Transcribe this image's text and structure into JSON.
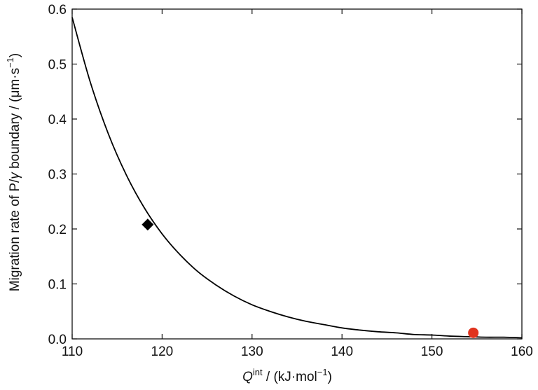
{
  "chart_data": {
    "type": "line",
    "xlabel": {
      "main": "Q",
      "sup": "int",
      "rest": " / (kJ·mol",
      "exp": "−1",
      "end": ")"
    },
    "ylabel": {
      "main": "Migration rate of P/",
      "gamma": "γ",
      "rest": " boundary / (μm·s",
      "exp": "−1",
      "end": ")"
    },
    "xlim": [
      110,
      160
    ],
    "ylim": [
      0,
      0.6
    ],
    "xticks": [
      "110",
      "120",
      "130",
      "140",
      "150",
      "160"
    ],
    "yticks": [
      "0.0",
      "0.1",
      "0.2",
      "0.3",
      "0.4",
      "0.5",
      "0.6"
    ],
    "grid": false,
    "series": [
      {
        "type": "line",
        "color": "#000000",
        "x": [
          110,
          112,
          114,
          116,
          118,
          120,
          122,
          124,
          126,
          128,
          130,
          132,
          134,
          136,
          138,
          140,
          142,
          144,
          146,
          148,
          150,
          152,
          154,
          156,
          158,
          160
        ],
        "y": [
          0.585,
          0.468,
          0.374,
          0.299,
          0.239,
          0.191,
          0.153,
          0.122,
          0.098,
          0.078,
          0.062,
          0.05,
          0.04,
          0.032,
          0.026,
          0.02,
          0.016,
          0.013,
          0.011,
          0.008,
          0.007,
          0.005,
          0.004,
          0.003,
          0.003,
          0.002
        ]
      }
    ],
    "markers": [
      {
        "shape": "diamond",
        "color": "#000000",
        "x": 118.4,
        "y": 0.208
      },
      {
        "shape": "circle",
        "color": "#e0341e",
        "x": 154.6,
        "y": 0.011
      }
    ]
  }
}
